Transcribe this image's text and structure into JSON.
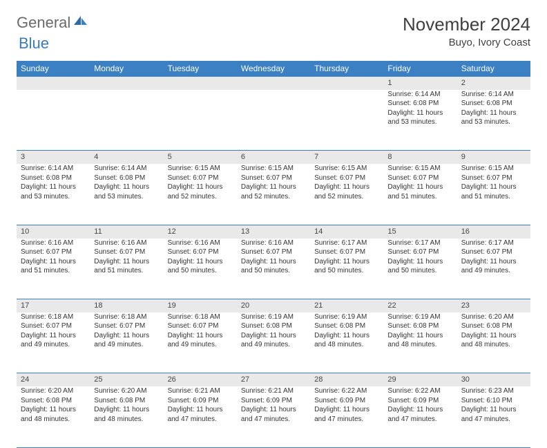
{
  "logo": {
    "general": "General",
    "blue": "Blue"
  },
  "title": "November 2024",
  "location": "Buyo, Ivory Coast",
  "colors": {
    "header_bg": "#3a80c2",
    "header_text": "#ffffff",
    "daynum_bg": "#e9e9e9",
    "rule": "#3a80c2",
    "text": "#333333",
    "logo_gray": "#6a6a6a",
    "logo_blue": "#3a7abf"
  },
  "weekdays": [
    "Sunday",
    "Monday",
    "Tuesday",
    "Wednesday",
    "Thursday",
    "Friday",
    "Saturday"
  ],
  "weeks": [
    [
      null,
      null,
      null,
      null,
      null,
      {
        "n": "1",
        "sr": "6:14 AM",
        "ss": "6:08 PM",
        "dl": "11 hours and 53 minutes."
      },
      {
        "n": "2",
        "sr": "6:14 AM",
        "ss": "6:08 PM",
        "dl": "11 hours and 53 minutes."
      }
    ],
    [
      {
        "n": "3",
        "sr": "6:14 AM",
        "ss": "6:08 PM",
        "dl": "11 hours and 53 minutes."
      },
      {
        "n": "4",
        "sr": "6:14 AM",
        "ss": "6:08 PM",
        "dl": "11 hours and 53 minutes."
      },
      {
        "n": "5",
        "sr": "6:15 AM",
        "ss": "6:07 PM",
        "dl": "11 hours and 52 minutes."
      },
      {
        "n": "6",
        "sr": "6:15 AM",
        "ss": "6:07 PM",
        "dl": "11 hours and 52 minutes."
      },
      {
        "n": "7",
        "sr": "6:15 AM",
        "ss": "6:07 PM",
        "dl": "11 hours and 52 minutes."
      },
      {
        "n": "8",
        "sr": "6:15 AM",
        "ss": "6:07 PM",
        "dl": "11 hours and 51 minutes."
      },
      {
        "n": "9",
        "sr": "6:15 AM",
        "ss": "6:07 PM",
        "dl": "11 hours and 51 minutes."
      }
    ],
    [
      {
        "n": "10",
        "sr": "6:16 AM",
        "ss": "6:07 PM",
        "dl": "11 hours and 51 minutes."
      },
      {
        "n": "11",
        "sr": "6:16 AM",
        "ss": "6:07 PM",
        "dl": "11 hours and 51 minutes."
      },
      {
        "n": "12",
        "sr": "6:16 AM",
        "ss": "6:07 PM",
        "dl": "11 hours and 50 minutes."
      },
      {
        "n": "13",
        "sr": "6:16 AM",
        "ss": "6:07 PM",
        "dl": "11 hours and 50 minutes."
      },
      {
        "n": "14",
        "sr": "6:17 AM",
        "ss": "6:07 PM",
        "dl": "11 hours and 50 minutes."
      },
      {
        "n": "15",
        "sr": "6:17 AM",
        "ss": "6:07 PM",
        "dl": "11 hours and 50 minutes."
      },
      {
        "n": "16",
        "sr": "6:17 AM",
        "ss": "6:07 PM",
        "dl": "11 hours and 49 minutes."
      }
    ],
    [
      {
        "n": "17",
        "sr": "6:18 AM",
        "ss": "6:07 PM",
        "dl": "11 hours and 49 minutes."
      },
      {
        "n": "18",
        "sr": "6:18 AM",
        "ss": "6:07 PM",
        "dl": "11 hours and 49 minutes."
      },
      {
        "n": "19",
        "sr": "6:18 AM",
        "ss": "6:07 PM",
        "dl": "11 hours and 49 minutes."
      },
      {
        "n": "20",
        "sr": "6:19 AM",
        "ss": "6:08 PM",
        "dl": "11 hours and 49 minutes."
      },
      {
        "n": "21",
        "sr": "6:19 AM",
        "ss": "6:08 PM",
        "dl": "11 hours and 48 minutes."
      },
      {
        "n": "22",
        "sr": "6:19 AM",
        "ss": "6:08 PM",
        "dl": "11 hours and 48 minutes."
      },
      {
        "n": "23",
        "sr": "6:20 AM",
        "ss": "6:08 PM",
        "dl": "11 hours and 48 minutes."
      }
    ],
    [
      {
        "n": "24",
        "sr": "6:20 AM",
        "ss": "6:08 PM",
        "dl": "11 hours and 48 minutes."
      },
      {
        "n": "25",
        "sr": "6:20 AM",
        "ss": "6:08 PM",
        "dl": "11 hours and 48 minutes."
      },
      {
        "n": "26",
        "sr": "6:21 AM",
        "ss": "6:09 PM",
        "dl": "11 hours and 47 minutes."
      },
      {
        "n": "27",
        "sr": "6:21 AM",
        "ss": "6:09 PM",
        "dl": "11 hours and 47 minutes."
      },
      {
        "n": "28",
        "sr": "6:22 AM",
        "ss": "6:09 PM",
        "dl": "11 hours and 47 minutes."
      },
      {
        "n": "29",
        "sr": "6:22 AM",
        "ss": "6:09 PM",
        "dl": "11 hours and 47 minutes."
      },
      {
        "n": "30",
        "sr": "6:23 AM",
        "ss": "6:10 PM",
        "dl": "11 hours and 47 minutes."
      }
    ]
  ],
  "labels": {
    "sunrise": "Sunrise: ",
    "sunset": "Sunset: ",
    "daylight": "Daylight: "
  }
}
